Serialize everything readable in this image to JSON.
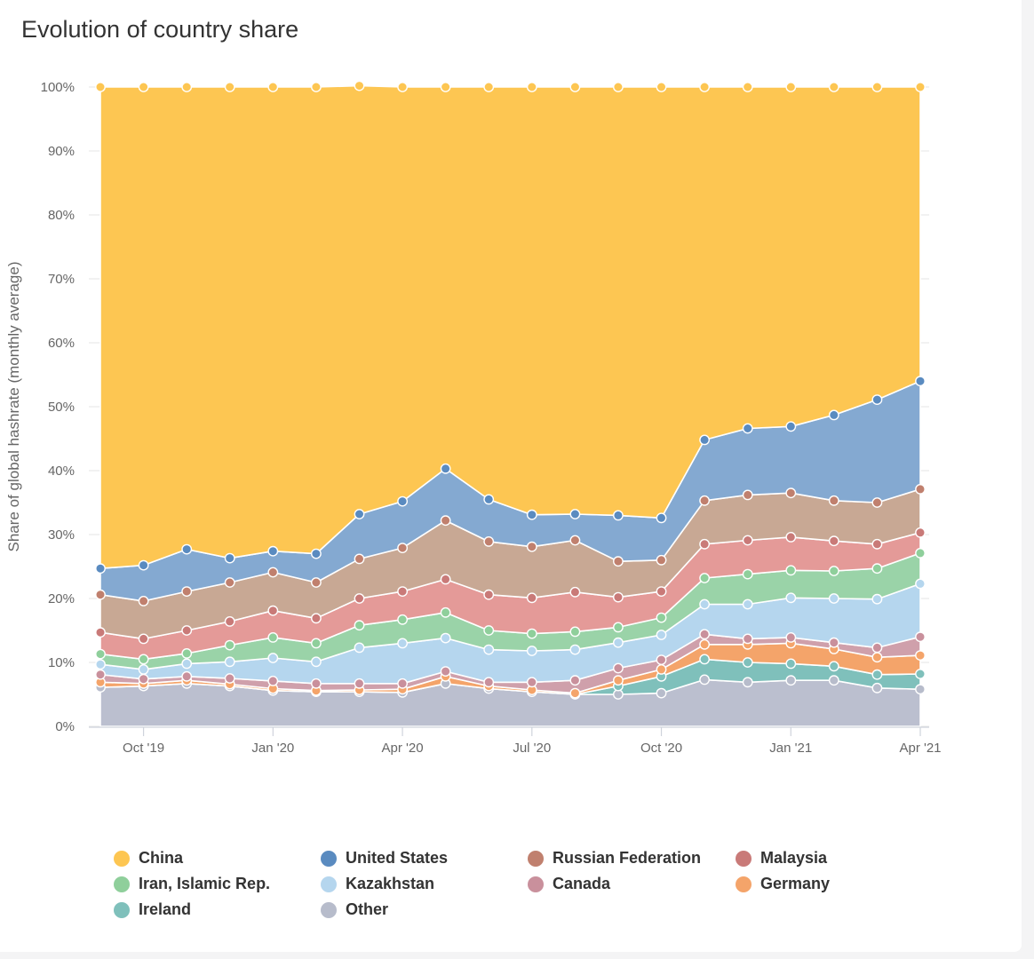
{
  "title": "Evolution of country share",
  "chart_data": {
    "type": "area",
    "stacked": true,
    "title": "Evolution of country share",
    "xlabel": "",
    "ylabel": "Share of global hashrate (monthly average)",
    "ylim": [
      0,
      100
    ],
    "y_ticks": [
      "0%",
      "10%",
      "20%",
      "30%",
      "40%",
      "50%",
      "60%",
      "70%",
      "80%",
      "90%",
      "100%"
    ],
    "x_ticks": [
      "Oct '19",
      "Jan '20",
      "Apr '20",
      "Jul '20",
      "Oct '20",
      "Jan '21",
      "Apr '21"
    ],
    "x": [
      "2019-09",
      "2019-10",
      "2019-11",
      "2019-12",
      "2020-01",
      "2020-02",
      "2020-03",
      "2020-04",
      "2020-05",
      "2020-06",
      "2020-07",
      "2020-08",
      "2020-09",
      "2020-10",
      "2020-11",
      "2020-12",
      "2021-01",
      "2021-02",
      "2021-03",
      "2021-04"
    ],
    "grid": "horizontal",
    "legend_position": "bottom",
    "series": [
      {
        "name": "Other",
        "color": "#bbbfcf",
        "values": [
          6.1,
          6.3,
          6.7,
          6.3,
          5.6,
          5.4,
          5.4,
          5.3,
          6.7,
          5.9,
          5.4,
          5.0,
          5.0,
          5.2,
          7.3,
          6.9,
          7.2,
          7.2,
          6.0,
          5.8
        ]
      },
      {
        "name": "Ireland",
        "color": "#7fc0bb",
        "values": [
          0,
          0,
          0,
          0,
          0,
          0,
          0,
          0,
          0,
          0,
          0,
          0,
          1.3,
          2.6,
          3.2,
          3.1,
          2.6,
          2.2,
          2.1,
          2.4
        ]
      },
      {
        "name": "Germany",
        "color": "#f4a46a",
        "values": [
          0.8,
          0.4,
          0.5,
          0.3,
          0.3,
          0.2,
          0.3,
          0.5,
          1.1,
          0.4,
          0.3,
          0.2,
          0.9,
          1.1,
          2.3,
          2.8,
          3.2,
          2.7,
          2.7,
          2.9
        ]
      },
      {
        "name": "Canada",
        "color": "#cfa0ab",
        "values": [
          1.2,
          0.7,
          0.6,
          0.9,
          1.2,
          1.1,
          1.0,
          0.9,
          0.8,
          0.6,
          1.2,
          2.0,
          1.9,
          1.5,
          1.6,
          0.9,
          0.9,
          1.0,
          1.5,
          2.9
        ]
      },
      {
        "name": "Kazakhstan",
        "color": "#b5d6ee",
        "values": [
          1.6,
          1.5,
          2.0,
          2.6,
          3.6,
          3.4,
          5.6,
          6.3,
          5.2,
          5.1,
          4.9,
          4.8,
          4.0,
          3.9,
          4.7,
          5.4,
          6.2,
          6.9,
          7.6,
          8.3
        ]
      },
      {
        "name": "Iran, Islamic Rep.",
        "color": "#9ad3a8",
        "values": [
          1.6,
          1.6,
          1.6,
          2.6,
          3.2,
          2.9,
          3.5,
          3.7,
          4.0,
          3.0,
          2.7,
          2.8,
          2.4,
          2.7,
          4.1,
          4.7,
          4.3,
          4.3,
          4.8,
          4.8
        ]
      },
      {
        "name": "Malaysia",
        "color": "#e49a98",
        "values": [
          3.4,
          3.2,
          3.6,
          3.7,
          4.2,
          3.9,
          4.2,
          4.4,
          5.2,
          5.6,
          5.6,
          6.2,
          4.7,
          4.1,
          5.3,
          5.3,
          5.2,
          4.7,
          3.8,
          3.2
        ]
      },
      {
        "name": "Russian Federation",
        "color": "#c8a894",
        "values": [
          5.9,
          5.9,
          6.1,
          6.1,
          6.0,
          5.6,
          6.2,
          6.8,
          9.2,
          8.3,
          8.0,
          8.1,
          5.6,
          4.9,
          6.8,
          7.1,
          6.9,
          6.3,
          6.5,
          6.8
        ]
      },
      {
        "name": "United States",
        "color": "#84a9d1",
        "values": [
          4.1,
          5.6,
          6.6,
          3.8,
          3.3,
          4.5,
          7.0,
          7.3,
          8.1,
          6.6,
          5.0,
          4.1,
          7.2,
          6.6,
          9.5,
          10.4,
          10.4,
          13.4,
          16.1,
          16.9
        ]
      },
      {
        "name": "China",
        "color": "#fdc652",
        "values": [
          75.3,
          74.8,
          72.3,
          73.7,
          72.6,
          73.0,
          67.0,
          64.8,
          59.7,
          64.5,
          66.9,
          66.8,
          67.0,
          67.4,
          55.2,
          53.4,
          53.1,
          51.3,
          48.9,
          46.0
        ]
      }
    ]
  },
  "legend": [
    {
      "name": "China",
      "color": "#fdc652"
    },
    {
      "name": "United States",
      "color": "#5a8bc0"
    },
    {
      "name": "Russian Federation",
      "color": "#c0806e"
    },
    {
      "name": "Malaysia",
      "color": "#c97a78"
    },
    {
      "name": "Iran, Islamic Rep.",
      "color": "#8fcf9b"
    },
    {
      "name": "Kazakhstan",
      "color": "#b5d6ee"
    },
    {
      "name": "Canada",
      "color": "#c9909c"
    },
    {
      "name": "Germany",
      "color": "#f4a46a"
    },
    {
      "name": "Ireland",
      "color": "#7fc0bb"
    },
    {
      "name": "Other",
      "color": "#b7bccb"
    }
  ]
}
